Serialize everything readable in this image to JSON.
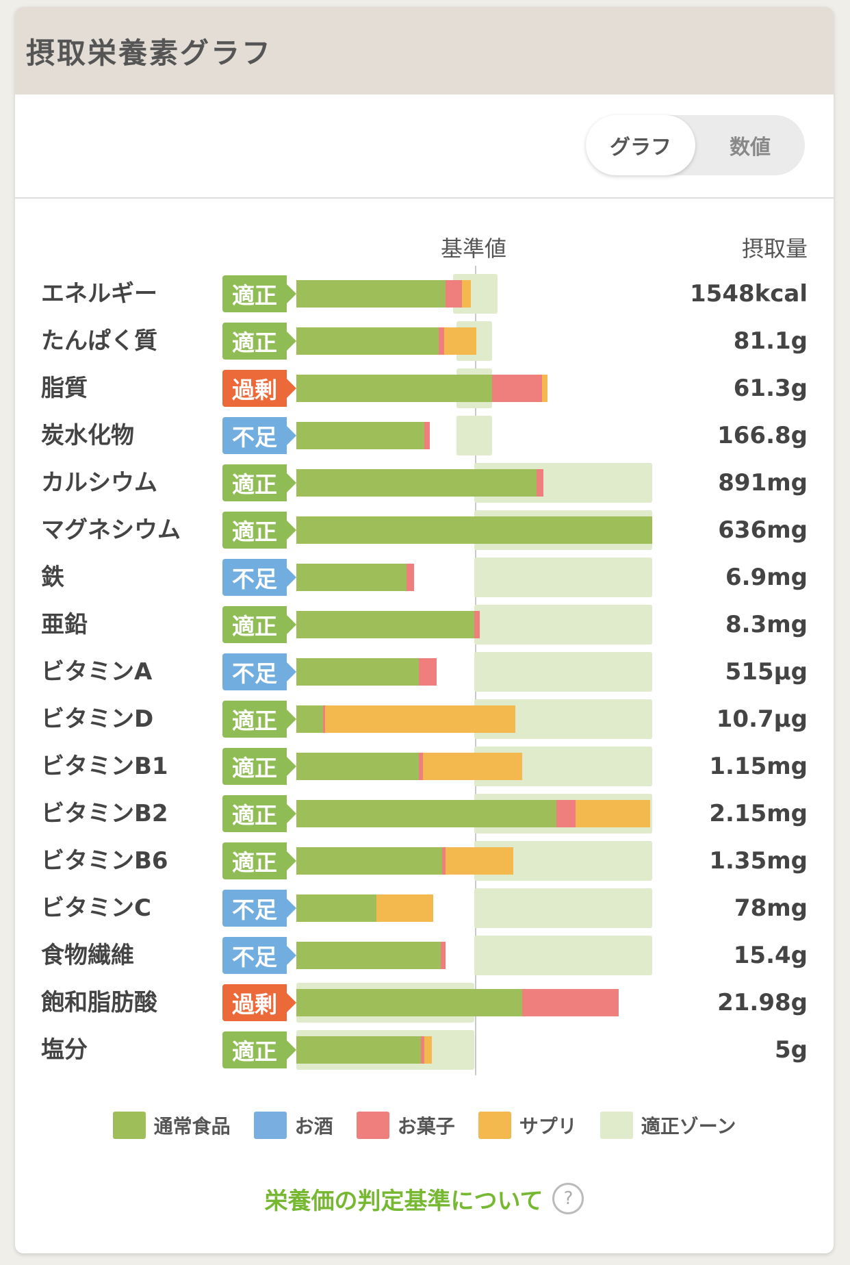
{
  "header": {
    "title": "摂取栄養素グラフ"
  },
  "toggle": {
    "graph_label": "グラフ",
    "number_label": "数値"
  },
  "columns": {
    "baseline": "基準値",
    "intake": "摂取量"
  },
  "statuses": {
    "ok": "適正",
    "over": "過剰",
    "under": "不足"
  },
  "colors": {
    "normal": "#9ebe5a",
    "alcohol": "#78aee0",
    "snack": "#ee7f7d",
    "supplement": "#f3b94f",
    "zone": "#dfebca",
    "ok": "#8fbc55",
    "over": "#ec6a3a",
    "under": "#72addf"
  },
  "chart_data": {
    "type": "bar",
    "stacked": true,
    "baseline_label": "基準値",
    "series_names": [
      "通常食品",
      "お酒",
      "お菓子",
      "サプリ"
    ],
    "rows": [
      {
        "name": "エネルギー",
        "status": "ok",
        "amount": "1548kcal",
        "normal": 84,
        "alcohol": 0,
        "snack": 9,
        "supplement": 5,
        "zone": [
          88,
          113
        ]
      },
      {
        "name": "たんぱく質",
        "status": "ok",
        "amount": "81.1g",
        "normal": 80,
        "alcohol": 0,
        "snack": 3,
        "supplement": 18,
        "zone": [
          90,
          110
        ]
      },
      {
        "name": "脂質",
        "status": "over",
        "amount": "61.3g",
        "normal": 110,
        "alcohol": 0,
        "snack": 28,
        "supplement": 3,
        "zone": [
          90,
          110
        ]
      },
      {
        "name": "炭水化物",
        "status": "under",
        "amount": "166.8g",
        "normal": 72,
        "alcohol": 0,
        "snack": 3,
        "supplement": 0,
        "zone": [
          90,
          110
        ]
      },
      {
        "name": "カルシウム",
        "status": "ok",
        "amount": "891mg",
        "normal": 135,
        "alcohol": 0,
        "snack": 4,
        "supplement": 0,
        "zone": [
          100,
          200
        ]
      },
      {
        "name": "マグネシウム",
        "status": "ok",
        "amount": "636mg",
        "normal": 200,
        "alcohol": 0,
        "snack": 0,
        "supplement": 0,
        "zone": [
          100,
          200
        ]
      },
      {
        "name": "鉄",
        "status": "under",
        "amount": "6.9mg",
        "normal": 62,
        "alcohol": 0,
        "snack": 4,
        "supplement": 0,
        "zone": [
          100,
          200
        ]
      },
      {
        "name": "亜鉛",
        "status": "ok",
        "amount": "8.3mg",
        "normal": 100,
        "alcohol": 0,
        "snack": 3,
        "supplement": 0,
        "zone": [
          100,
          200
        ]
      },
      {
        "name": "ビタミンA",
        "status": "under",
        "amount": "515μg",
        "normal": 69,
        "alcohol": 0,
        "snack": 10,
        "supplement": 0,
        "zone": [
          100,
          200
        ]
      },
      {
        "name": "ビタミンD",
        "status": "ok",
        "amount": "10.7μg",
        "normal": 15,
        "alcohol": 0,
        "snack": 1,
        "supplement": 107,
        "zone": [
          100,
          200
        ]
      },
      {
        "name": "ビタミンB1",
        "status": "ok",
        "amount": "1.15mg",
        "normal": 69,
        "alcohol": 0,
        "snack": 2,
        "supplement": 56,
        "zone": [
          100,
          200
        ]
      },
      {
        "name": "ビタミンB2",
        "status": "ok",
        "amount": "2.15mg",
        "normal": 146,
        "alcohol": 0,
        "snack": 11,
        "supplement": 42,
        "zone": [
          100,
          200
        ]
      },
      {
        "name": "ビタミンB6",
        "status": "ok",
        "amount": "1.35mg",
        "normal": 82,
        "alcohol": 0,
        "snack": 2,
        "supplement": 38,
        "zone": [
          100,
          200
        ]
      },
      {
        "name": "ビタミンC",
        "status": "under",
        "amount": "78mg",
        "normal": 45,
        "alcohol": 0,
        "snack": 0,
        "supplement": 32,
        "zone": [
          100,
          200
        ]
      },
      {
        "name": "食物繊維",
        "status": "under",
        "amount": "15.4g",
        "normal": 81,
        "alcohol": 0,
        "snack": 3,
        "supplement": 0,
        "zone": [
          100,
          200
        ]
      },
      {
        "name": "飽和脂肪酸",
        "status": "over",
        "amount": "21.98g",
        "normal": 127,
        "alcohol": 0,
        "snack": 54,
        "supplement": 0,
        "zone": [
          0,
          100
        ]
      },
      {
        "name": "塩分",
        "status": "ok",
        "amount": "5g",
        "normal": 70,
        "alcohol": 0,
        "snack": 2,
        "supplement": 4,
        "zone": [
          0,
          100
        ]
      }
    ]
  },
  "legend": [
    {
      "label": "通常食品",
      "color": "#9ebe5a"
    },
    {
      "label": "お酒",
      "color": "#78aee0"
    },
    {
      "label": "お菓子",
      "color": "#ee7f7d"
    },
    {
      "label": "サプリ",
      "color": "#f3b94f"
    },
    {
      "label": "適正ゾーン",
      "color": "#dfebca"
    }
  ],
  "footer": {
    "link_label": "栄養価の判定基準について",
    "help_icon": "?"
  }
}
